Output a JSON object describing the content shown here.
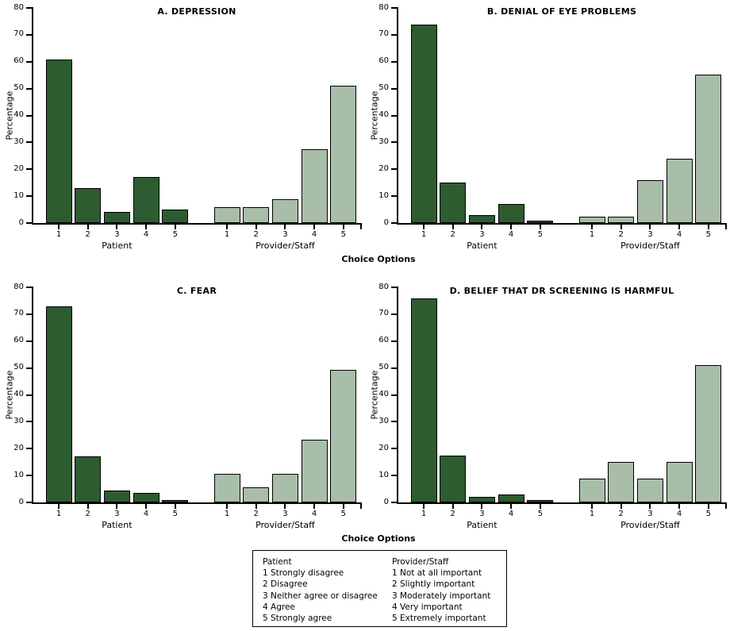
{
  "figure": {
    "background": "#ffffff"
  },
  "colors": {
    "patient_bar": "#2d5c31",
    "provider_bar": "#a8bea9",
    "bar_border": "#000000",
    "axis": "#000000",
    "text": "#000000"
  },
  "axes": {
    "ylabel": "Percentage",
    "xlabel": "Choice Options",
    "y_ticks": [
      0,
      10,
      20,
      30,
      40,
      50,
      60,
      70,
      80
    ],
    "ylim": [
      0,
      80
    ],
    "x_tick_labels": [
      "1",
      "2",
      "3",
      "4",
      "5"
    ],
    "group_labels": [
      "Patient",
      "Provider/Staff"
    ],
    "grid": "off"
  },
  "chart_data": [
    {
      "type": "bar",
      "title": "A. DEPRESSION",
      "xlabel": "Choice Options",
      "ylabel": "Percentage",
      "ylim": [
        0,
        80
      ],
      "categories": [
        "1",
        "2",
        "3",
        "4",
        "5"
      ],
      "series": [
        {
          "name": "Patient",
          "values": [
            60.7,
            13.0,
            4.0,
            17.0,
            5.0
          ]
        },
        {
          "name": "Provider/Staff",
          "values": [
            6.0,
            6.0,
            9.0,
            27.4,
            51.2
          ]
        }
      ]
    },
    {
      "type": "bar",
      "title": "B. DENIAL OF EYE PROBLEMS",
      "xlabel": "Choice Options",
      "ylabel": "Percentage",
      "ylim": [
        0,
        80
      ],
      "categories": [
        "1",
        "2",
        "3",
        "4",
        "5"
      ],
      "series": [
        {
          "name": "Patient",
          "values": [
            73.9,
            15.2,
            3.0,
            7.1,
            0.9
          ]
        },
        {
          "name": "Provider/Staff",
          "values": [
            2.4,
            2.4,
            15.9,
            23.9,
            55.1
          ]
        }
      ]
    },
    {
      "type": "bar",
      "title": "C. FEAR",
      "xlabel": "Choice Options",
      "ylabel": "Percentage",
      "ylim": [
        0,
        80
      ],
      "categories": [
        "1",
        "2",
        "3",
        "4",
        "5"
      ],
      "series": [
        {
          "name": "Patient",
          "values": [
            73.0,
            17.0,
            4.4,
            3.5,
            0.9
          ]
        },
        {
          "name": "Provider/Staff",
          "values": [
            10.6,
            5.6,
            10.6,
            23.4,
            49.4
          ]
        }
      ]
    },
    {
      "type": "bar",
      "title": "D. BELIEF THAT DR SCREENING IS HARMFUL",
      "xlabel": "Choice Options",
      "ylabel": "Percentage",
      "ylim": [
        0,
        80
      ],
      "categories": [
        "1",
        "2",
        "3",
        "4",
        "5"
      ],
      "series": [
        {
          "name": "Patient",
          "values": [
            75.9,
            17.4,
            2.1,
            3.0,
            0.9
          ]
        },
        {
          "name": "Provider/Staff",
          "values": [
            8.9,
            15.2,
            8.9,
            15.2,
            51.2
          ]
        }
      ]
    }
  ],
  "legend": {
    "columns": [
      {
        "header": "Patient",
        "items": [
          "1 Strongly disagree",
          "2 Disagree",
          "3 Neither agree or disagree",
          "4 Agree",
          "5 Strongly agree"
        ]
      },
      {
        "header": "Provider/Staff",
        "items": [
          "1 Not at all important",
          "2 Slightly important",
          "3 Moderately important",
          "4 Very important",
          "5 Extremely important"
        ]
      }
    ]
  }
}
